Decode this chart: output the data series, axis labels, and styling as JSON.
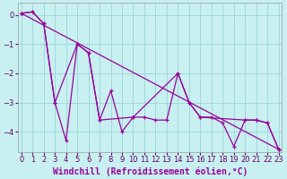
{
  "background_color": "#c8f0f0",
  "grid_color": "#a0d8dc",
  "line_color": "#990099",
  "xlabel": "Windchill (Refroidissement éolien,°C)",
  "xlabel_fontsize": 7,
  "tick_fontsize": 6,
  "ylim": [
    -4.7,
    0.4
  ],
  "xlim": [
    -0.3,
    23.3
  ],
  "yticks": [
    0,
    -1,
    -2,
    -3,
    -4
  ],
  "xticks": [
    0,
    1,
    2,
    3,
    4,
    5,
    6,
    7,
    8,
    9,
    10,
    11,
    12,
    13,
    14,
    15,
    16,
    17,
    18,
    19,
    20,
    21,
    22,
    23
  ],
  "series1_x": [
    0,
    1,
    2,
    3,
    4,
    5,
    6,
    7,
    8,
    9,
    10,
    11,
    12,
    13,
    14,
    15,
    16,
    17,
    18,
    19,
    20,
    21,
    22,
    23
  ],
  "series1_y": [
    0.05,
    0.1,
    -0.3,
    -3.0,
    -4.3,
    -1.0,
    -1.3,
    -3.6,
    -2.6,
    -4.0,
    -3.5,
    -3.5,
    -3.6,
    -3.6,
    -2.0,
    -3.0,
    -3.5,
    -3.5,
    -3.7,
    -4.5,
    -3.6,
    -3.6,
    -3.7,
    -4.6
  ],
  "series2_x": [
    0,
    1,
    2,
    3,
    5,
    6,
    7,
    10,
    14,
    15,
    16,
    20,
    21,
    22,
    23
  ],
  "series2_y": [
    0.05,
    0.1,
    -0.3,
    -3.0,
    -1.0,
    -1.3,
    -3.6,
    -3.5,
    -2.0,
    -3.0,
    -3.5,
    -3.6,
    -3.6,
    -3.7,
    -4.6
  ],
  "series3_x": [
    0,
    23
  ],
  "series3_y": [
    0.05,
    -4.6
  ]
}
